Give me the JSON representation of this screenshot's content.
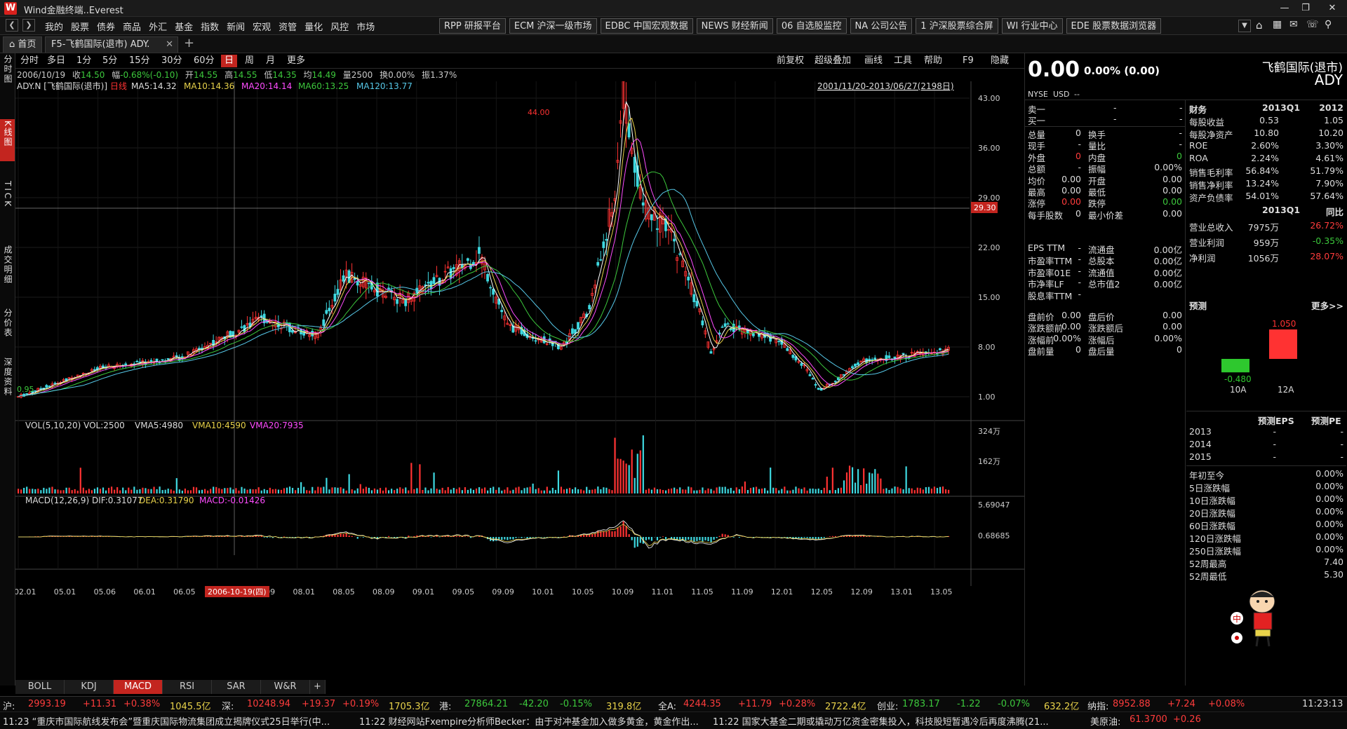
{
  "app": {
    "title": "Wind金融终端..Everest",
    "logo_letter": "W"
  },
  "menu": [
    "我的",
    "股票",
    "债券",
    "商品",
    "外汇",
    "基金",
    "指数",
    "新闻",
    "宏观",
    "资管",
    "量化",
    "风控",
    "市场"
  ],
  "quick_tabs": [
    "RPP 研报平台",
    "ECM 沪深一级市场",
    "EDBC 中国宏观数据",
    "NEWS 财经新闻",
    "06 自选股监控",
    "NA 公司公告",
    "1 沪深股票综合屏",
    "WI 行业中心",
    "EDE 股票数据浏览器"
  ],
  "page_tabs": {
    "home": "首页",
    "active": "F5-飞鹤国际(退市) ADY."
  },
  "left_nav": [
    "分时图",
    "K线图",
    "TICK",
    "成交明细",
    "分价表",
    "深度资料"
  ],
  "periods": [
    "分时",
    "多日",
    "1分",
    "5分",
    "15分",
    "30分",
    "60分",
    "日",
    "周",
    "月",
    "更多"
  ],
  "selected_period": "日",
  "chart_tools": [
    "前复权",
    "超级叠加",
    "画线",
    "工具",
    "帮助",
    "F9",
    "隐藏"
  ],
  "info": {
    "date": "2006/10/19",
    "close_label": "收",
    "close": "14.50",
    "chg_label": "幅",
    "chg": "-0.68%(-0.10)",
    "open_label": "开",
    "open": "14.55",
    "high_label": "高",
    "high": "14.55",
    "low_label": "低",
    "low": "14.35",
    "avg_label": "均",
    "avg": "14.49",
    "vol_label": "量",
    "vol": "2500",
    "turn_label": "换",
    "turn": "0.00%",
    "amp_label": "振",
    "amp": "1.37%"
  },
  "ma_legend": {
    "code": "ADY.N [飞鹤国际(退市)]",
    "kind": "日线",
    "ma5": "MA5:14.32",
    "ma10": "MA10:14.36",
    "ma20": "MA20:14.14",
    "ma60": "MA60:13.25",
    "ma120": "MA120:13.77"
  },
  "date_range": "2001/11/20-2013/06/27(2198日)",
  "crosshair_price": "29.30",
  "crosshair_date": "2006-10-19(四)",
  "annotations": {
    "high": "44.00",
    "low": "0.95"
  },
  "vol_legend": {
    "title": "VOL(5,10,20) VOL:2500",
    "vma5": "VMA5:4980",
    "vma10": "VMA10:4590",
    "vma20": "VMA20:7935"
  },
  "macd_legend": {
    "title": "MACD(12,26,9) DIF:0.31077",
    "dea": "DEA:0.31790",
    "macd": "MACD:-0.01426"
  },
  "colors": {
    "up": "#ff3232",
    "down": "#3ed8e0",
    "ma5": "#ffffff",
    "ma10": "#e8d24a",
    "ma20": "#ff4cff",
    "ma60": "#3cc83c",
    "ma120": "#56c8e8",
    "accent": "#c3251f"
  },
  "chart_data": {
    "type": "candlestick",
    "title": "",
    "price_axis": [
      "43.00",
      "36.00",
      "29.00",
      "22.00",
      "15.00",
      "8.00",
      "1.00"
    ],
    "price_range": [
      1.0,
      43.0
    ],
    "volume_axis": [
      "324万",
      "162万"
    ],
    "macd_axis": [
      "5.69047",
      "0.68685"
    ],
    "x_ticks": [
      "02.01",
      "05.01",
      "05.06",
      "06.01",
      "06.05",
      "06.09",
      "07.09",
      "08.01",
      "08.05",
      "08.09",
      "09.01",
      "09.05",
      "09.09",
      "10.01",
      "10.05",
      "10.09",
      "11.01",
      "11.05",
      "11.09",
      "12.01",
      "12.05",
      "12.09",
      "13.01",
      "13.05"
    ],
    "trend_key_points": [
      {
        "x": "2002.01",
        "y": 1.0
      },
      {
        "x": "2003.01",
        "y": 5.0
      },
      {
        "x": "2004.01",
        "y": 6.5
      },
      {
        "x": "2005.01",
        "y": 12.0
      },
      {
        "x": "2005.09",
        "y": 9.5
      },
      {
        "x": "2006.01",
        "y": 18.0
      },
      {
        "x": "2006.10",
        "y": 14.5
      },
      {
        "x": "2007.09",
        "y": 21.0
      },
      {
        "x": "2008.01",
        "y": 11.0
      },
      {
        "x": "2008.09",
        "y": 8.0
      },
      {
        "x": "2009.01",
        "y": 13.0
      },
      {
        "x": "2009.05",
        "y": 30.0
      },
      {
        "x": "2009.06",
        "y": 44.0
      },
      {
        "x": "2009.09",
        "y": 28.0
      },
      {
        "x": "2010.01",
        "y": 24.0
      },
      {
        "x": "2010.05",
        "y": 14.0
      },
      {
        "x": "2010.07",
        "y": 7.0
      },
      {
        "x": "2010.09",
        "y": 11.0
      },
      {
        "x": "2011.05",
        "y": 9.0
      },
      {
        "x": "2011.09",
        "y": 5.0
      },
      {
        "x": "2011.11",
        "y": 2.0
      },
      {
        "x": "2012.01",
        "y": 3.0
      },
      {
        "x": "2012.05",
        "y": 6.0
      },
      {
        "x": "2013.06",
        "y": 7.5
      }
    ]
  },
  "indicator_tabs": [
    "BOLL",
    "KDJ",
    "MACD",
    "RSI",
    "SAR",
    "W&R"
  ],
  "selected_indicator": "MACD",
  "quote": {
    "price": "0.00",
    "change": "0.00% (0.00)",
    "name": "飞鹤国际(退市)",
    "code": "ADY",
    "exchange": "NYSE",
    "currency": "USD",
    "currency_val": "--",
    "sell1": "卖一",
    "buy1": "买一",
    "dash": "-",
    "left_rows": [
      [
        "总量",
        "0",
        "换手",
        "-"
      ],
      [
        "现手",
        "-",
        "量比",
        "-"
      ],
      [
        "外盘",
        "0",
        "内盘",
        "0"
      ],
      [
        "总额",
        "-",
        "振幅",
        "0.00%"
      ],
      [
        "均价",
        "0.00",
        "开盘",
        "0.00"
      ],
      [
        "最高",
        "0.00",
        "最低",
        "0.00"
      ],
      [
        "涨停",
        "0.00",
        "跌停",
        "0.00"
      ],
      [
        "每手股数",
        "0",
        "最小价差",
        "0.00"
      ]
    ],
    "lower_rows": [
      [
        "EPS TTM",
        "-",
        "流通盘",
        "0.00亿"
      ],
      [
        "市盈率TTM",
        "-",
        "总股本",
        "0.00亿"
      ],
      [
        "市盈率01E",
        "-",
        "流通值",
        "0.00亿"
      ],
      [
        "市净率LF",
        "-",
        "总市值2",
        "0.00亿"
      ],
      [
        "股息率TTM",
        "-",
        "",
        ""
      ]
    ],
    "pre_rows": [
      [
        "盘前价",
        "0.00",
        "盘后价",
        "0.00"
      ],
      [
        "涨跌额前",
        "0.00",
        "涨跌额后",
        "0.00"
      ],
      [
        "涨幅前",
        "0.00%",
        "涨幅后",
        "0.00%"
      ],
      [
        "盘前量",
        "0",
        "盘后量",
        "0"
      ]
    ]
  },
  "finance": {
    "header": [
      "财务",
      "2013Q1",
      "2012"
    ],
    "rows": [
      [
        "每股收益",
        "0.53",
        "1.05"
      ],
      [
        "每股净资产",
        "10.80",
        "10.20"
      ],
      [
        "ROE",
        "2.60%",
        "3.30%"
      ],
      [
        "ROA",
        "2.24%",
        "4.61%"
      ],
      [
        "销售毛利率",
        "56.84%",
        "51.79%"
      ],
      [
        "销售净利率",
        "13.24%",
        "7.90%"
      ],
      [
        "资产负债率",
        "54.01%",
        "57.64%"
      ]
    ],
    "header2": [
      "",
      "2013Q1",
      "同比"
    ],
    "rows2": [
      [
        "营业总收入",
        "7975万",
        "26.72%"
      ],
      [
        "营业利润",
        "959万",
        "-0.35%"
      ],
      [
        "净利润",
        "1056万",
        "28.07%"
      ]
    ]
  },
  "forecast": {
    "title": "预测",
    "more": "更多>>",
    "bars": [
      {
        "label": "10A",
        "value": -0.48,
        "text": "-0.480"
      },
      {
        "label": "12A",
        "value": 1.05,
        "text": "1.050"
      }
    ],
    "eps_header": "预测EPS",
    "pe_header": "预测PE",
    "years": [
      [
        "2013",
        "-",
        "-"
      ],
      [
        "2014",
        "-",
        "-"
      ],
      [
        "2015",
        "-",
        "-"
      ]
    ]
  },
  "perf": [
    [
      "年初至今",
      "0.00%"
    ],
    [
      "5日涨跌幅",
      "0.00%"
    ],
    [
      "10日涨跌幅",
      "0.00%"
    ],
    [
      "20日涨跌幅",
      "0.00%"
    ],
    [
      "60日涨跌幅",
      "0.00%"
    ],
    [
      "120日涨跌幅",
      "0.00%"
    ],
    [
      "250日涨跌幅",
      "0.00%"
    ],
    [
      "52周最高",
      "7.40"
    ],
    [
      "52周最低",
      "5.30"
    ]
  ],
  "mascot_char": "中",
  "ticker": {
    "items": [
      {
        "name": "沪:",
        "v1": "2993.19",
        "v2": "+11.31",
        "v3": "+0.38%",
        "v4": "1045.5亿"
      },
      {
        "name": "深:",
        "v1": "10248.94",
        "v2": "+19.37",
        "v3": "+0.19%",
        "v4": "1705.3亿"
      },
      {
        "name": "港:",
        "v1": "27864.21",
        "v2": "-42.20",
        "v3": "-0.15%",
        "v4": "319.8亿"
      },
      {
        "name": "全A:",
        "v1": "4244.35",
        "v2": "+11.79",
        "v3": "+0.28%",
        "v4": "2722.4亿"
      },
      {
        "name": "创业:",
        "v1": "1783.17",
        "v2": "-1.22",
        "v3": "-0.07%",
        "v4": "632.2亿"
      },
      {
        "name": "纳指:",
        "v1": "8952.88",
        "v2": "+7.24",
        "v3": "+0.08%",
        "v4": ""
      }
    ],
    "time": "11:23:13"
  },
  "news": {
    "n1": "11:23 “重庆市国际航线发布会”暨重庆国际物流集团成立揭牌仪式25日举行(中...",
    "n2": "11:22 财经网站Fxempire分析师Becker：由于对冲基金加入做多黄金，黄金作出...",
    "n3": "11:22 国家大基金二期或撬动万亿资金密集投入，科技股短暂遇冷后再度沸腾(21...",
    "oil_label": "美原油:",
    "oil_price": "61.3700",
    "oil_chg": "+0.26"
  }
}
